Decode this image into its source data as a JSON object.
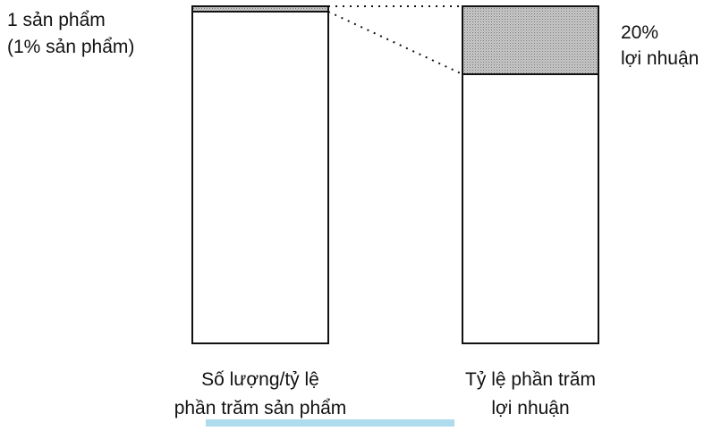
{
  "left_bar": {
    "top_label": [
      "1 sản phẩm",
      "(1% sản phẩm)"
    ],
    "caption": [
      "Số lượng/tỷ lệ",
      "phần trăm sản phẩm"
    ]
  },
  "right_bar": {
    "top_label": [
      "20%",
      "lợi nhuận"
    ],
    "caption": [
      "Tỷ lệ phần trăm",
      "lợi nhuận"
    ]
  }
}
